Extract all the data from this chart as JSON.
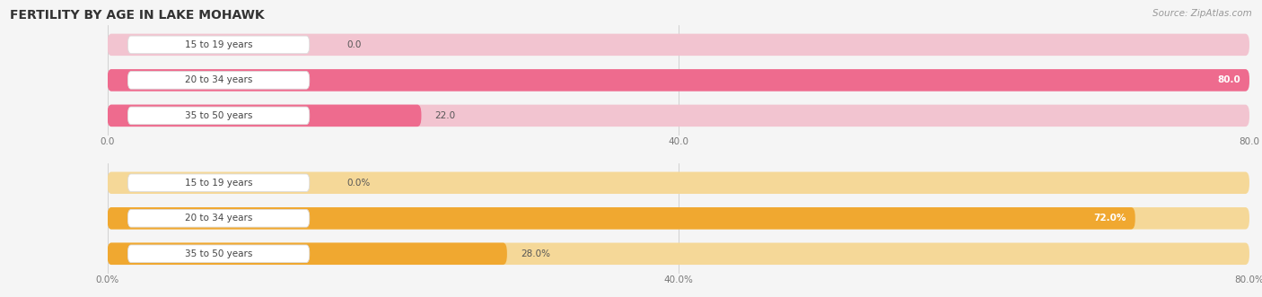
{
  "title": "FERTILITY BY AGE IN LAKE MOHAWK",
  "source": "Source: ZipAtlas.com",
  "top_chart": {
    "categories": [
      "15 to 19 years",
      "20 to 34 years",
      "35 to 50 years"
    ],
    "values": [
      0.0,
      80.0,
      22.0
    ],
    "bar_color": "#ee6b8e",
    "bar_bg_color": "#f2c4d0",
    "label_bg": "#ffffff",
    "xlim_max": 80.0,
    "xticks": [
      0.0,
      40.0,
      80.0
    ],
    "xtick_labels": [
      "0.0",
      "40.0",
      "80.0"
    ],
    "value_labels": [
      "0.0",
      "80.0",
      "22.0"
    ],
    "value_inside": [
      false,
      true,
      false
    ]
  },
  "bottom_chart": {
    "categories": [
      "15 to 19 years",
      "20 to 34 years",
      "35 to 50 years"
    ],
    "values": [
      0.0,
      72.0,
      28.0
    ],
    "bar_color": "#f0a830",
    "bar_bg_color": "#f5d898",
    "label_bg": "#ffffff",
    "xlim_max": 80.0,
    "xticks": [
      0.0,
      40.0,
      80.0
    ],
    "xtick_labels": [
      "0.0%",
      "40.0%",
      "80.0%"
    ],
    "value_labels": [
      "0.0%",
      "72.0%",
      "28.0%"
    ],
    "value_inside": [
      false,
      true,
      false
    ]
  },
  "bg_color": "#f5f5f5",
  "figsize": [
    14.06,
    3.31
  ],
  "dpi": 100,
  "title_fontsize": 10,
  "source_fontsize": 7.5,
  "label_fontsize": 7.5,
  "value_fontsize": 7.5
}
